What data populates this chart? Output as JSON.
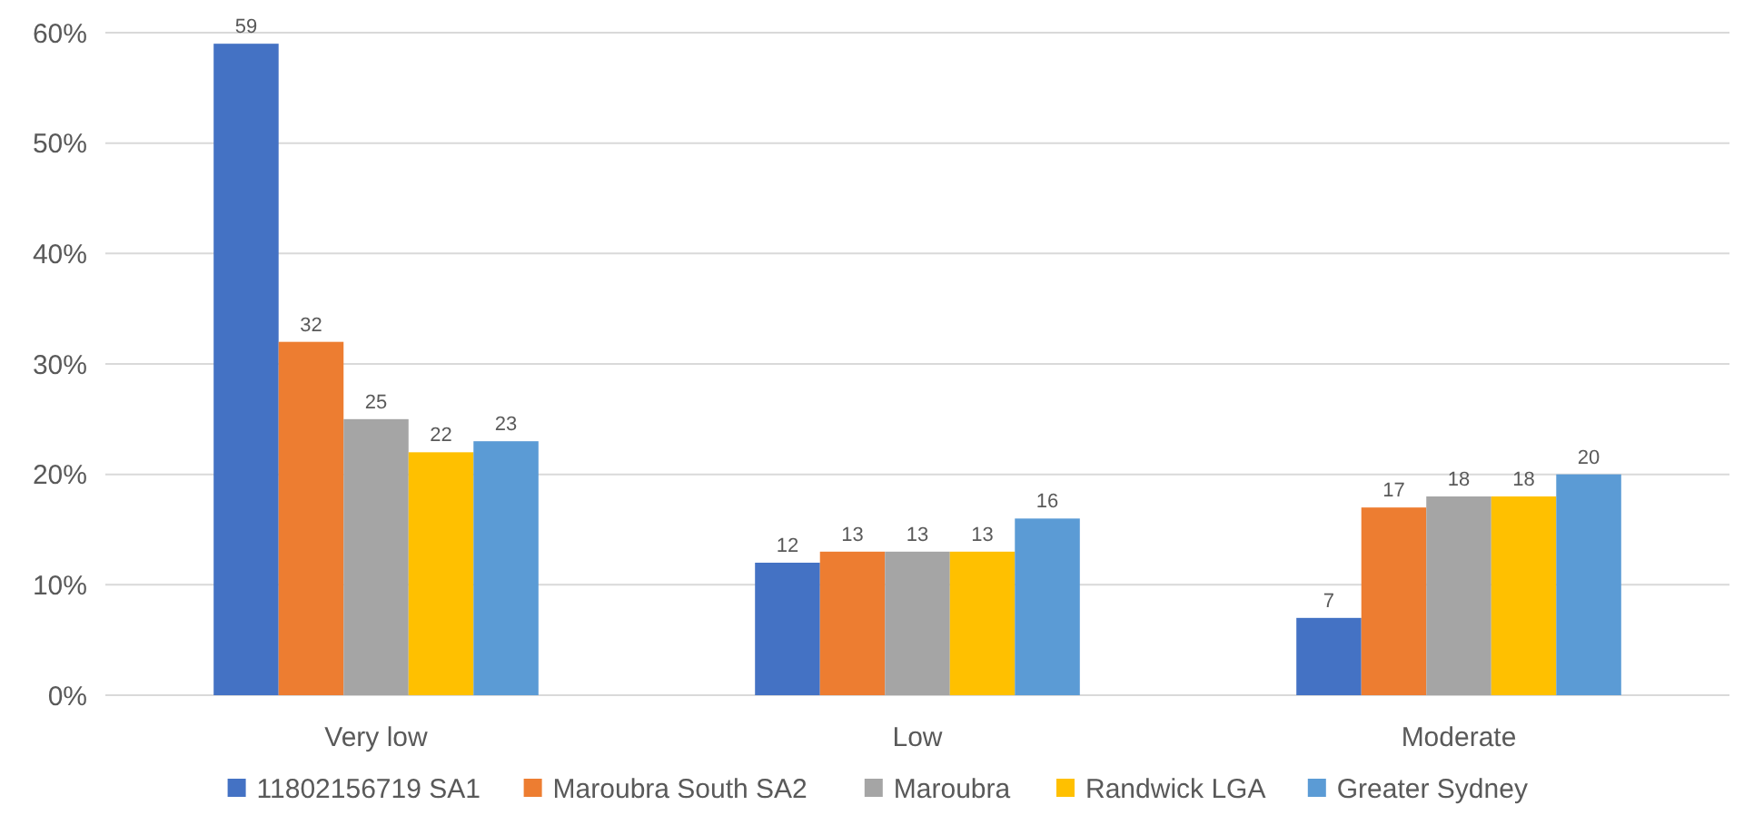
{
  "chart_data": {
    "type": "bar",
    "categories": [
      "Very low",
      "Low",
      "Moderate"
    ],
    "series": [
      {
        "name": "11802156719 SA1",
        "color": "#4472c4",
        "values": [
          59,
          12,
          7
        ]
      },
      {
        "name": "Maroubra South SA2",
        "color": "#ed7d31",
        "values": [
          32,
          13,
          17
        ]
      },
      {
        "name": "Maroubra",
        "color": "#a5a5a5",
        "values": [
          25,
          13,
          18
        ]
      },
      {
        "name": "Randwick LGA",
        "color": "#ffc000",
        "values": [
          22,
          13,
          18
        ]
      },
      {
        "name": "Greater Sydney",
        "color": "#5b9bd5",
        "values": [
          23,
          16,
          20
        ]
      }
    ],
    "ylim": [
      0,
      60
    ],
    "yticks": [
      {
        "value": 0,
        "label": "0%"
      },
      {
        "value": 10,
        "label": "10%"
      },
      {
        "value": 20,
        "label": "20%"
      },
      {
        "value": 30,
        "label": "30%"
      },
      {
        "value": 40,
        "label": "40%"
      },
      {
        "value": 50,
        "label": "50%"
      },
      {
        "value": 60,
        "label": "60%"
      }
    ],
    "grid": "y",
    "legend": "bottom",
    "data_labels": true
  }
}
